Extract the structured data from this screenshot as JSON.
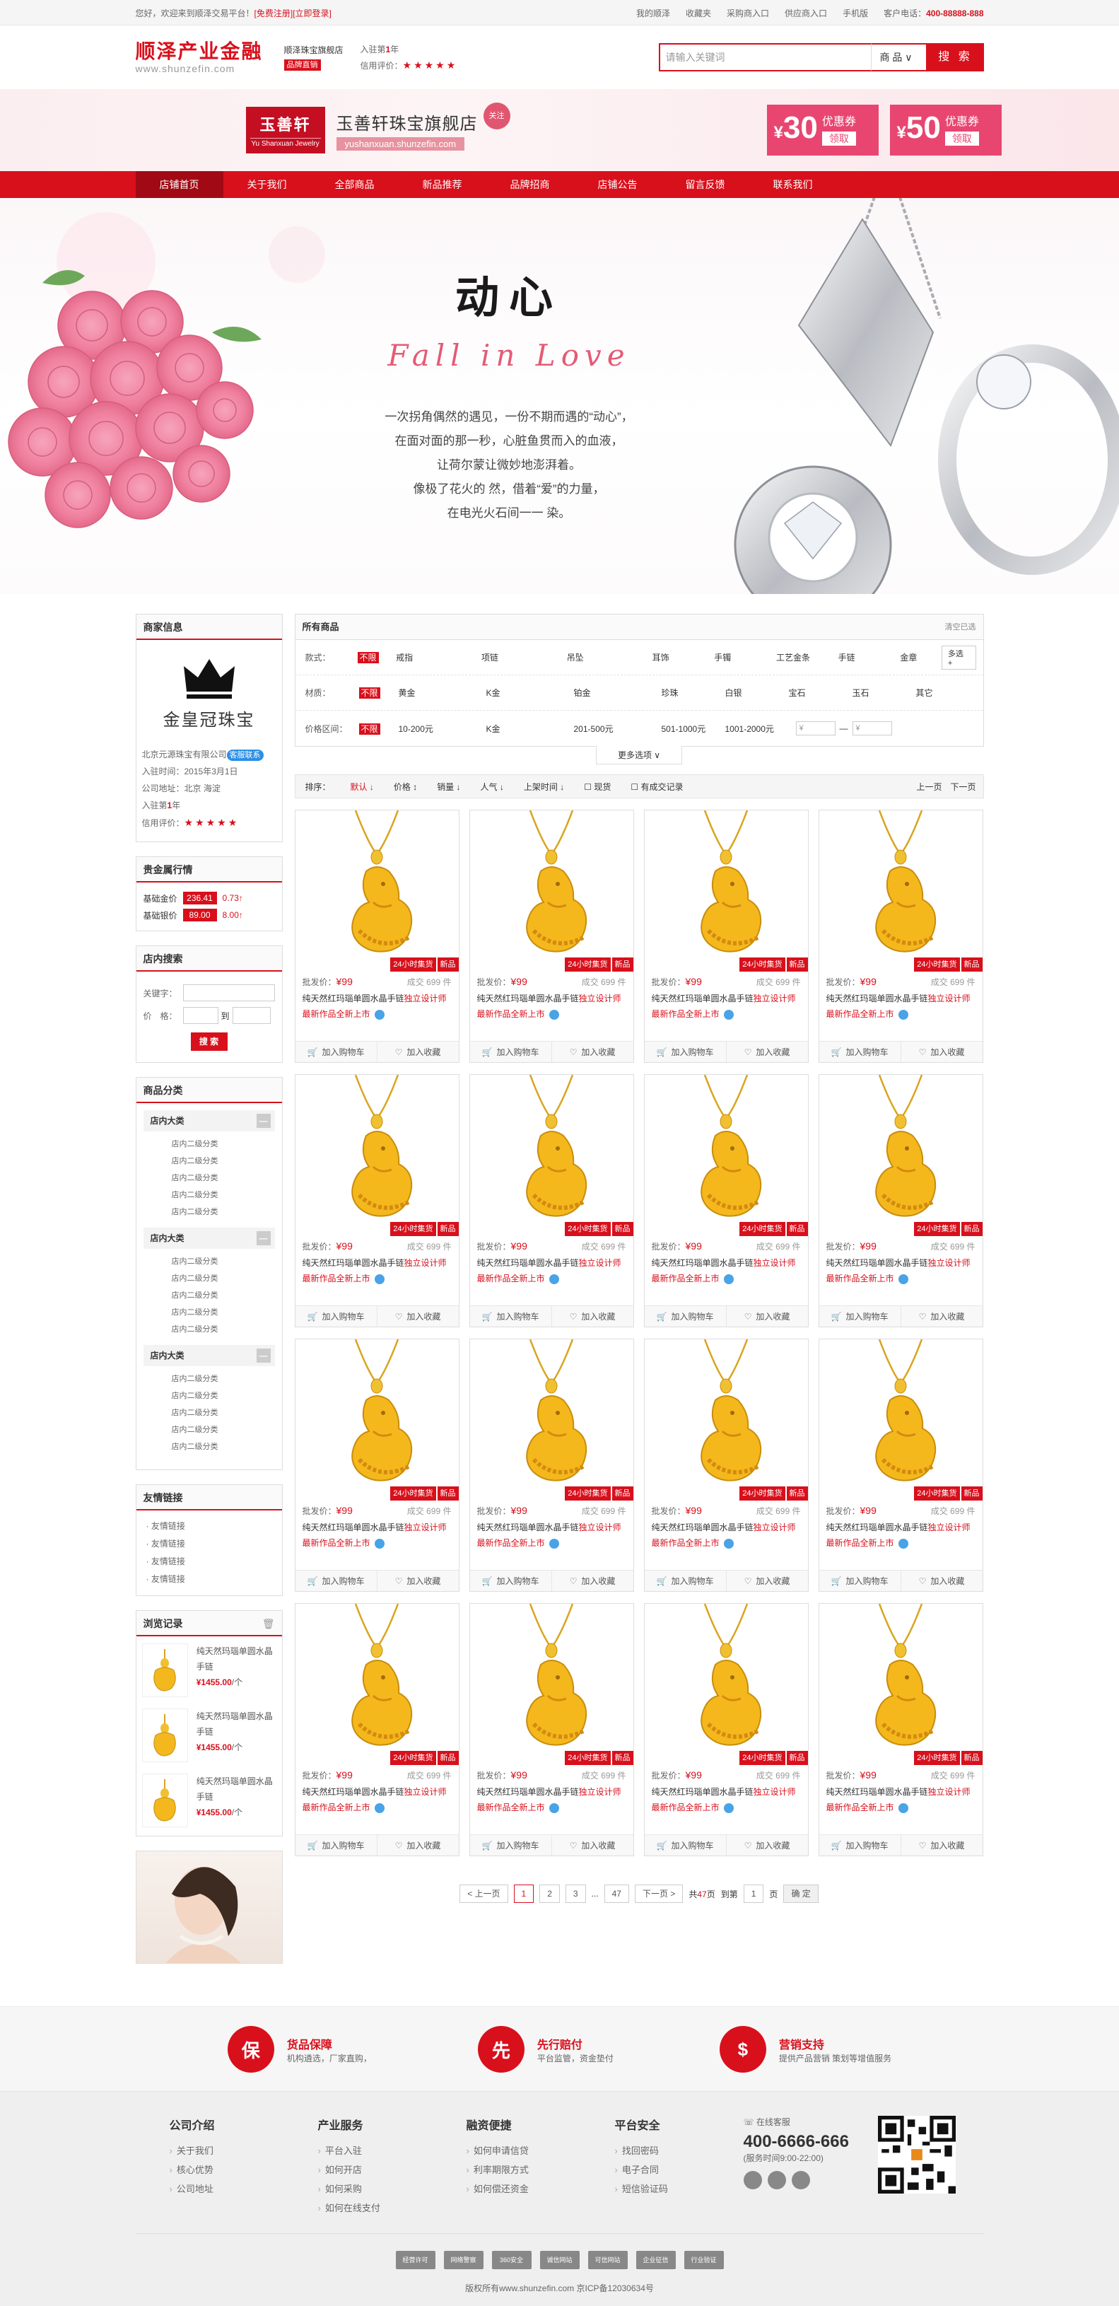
{
  "topbar": {
    "welcome": "您好，欢迎来到顺泽交易平台！",
    "register": "[免费注册]",
    "login": "[立即登录]",
    "links": [
      "我的顺泽",
      "收藏夹",
      "采购商入口",
      "供应商入口",
      "手机版"
    ],
    "tel_label": "客户电话：",
    "tel": "400-88888-888"
  },
  "header": {
    "logo_cn": "顺泽产业金融",
    "logo_en": "www.shunzefin.com",
    "shop_name": "顺泽珠宝旗舰店",
    "shop_badge": "品牌直销",
    "settled": "入驻第",
    "settled_num": "1",
    "settled_unit": "年",
    "credit": "信用评价：",
    "search_placeholder": "请输入关键词",
    "search_type": "商 品",
    "search_btn": "搜 索"
  },
  "shop": {
    "logo_text": "玉善轩",
    "logo_en": "Yu Shanxuan Jewelry",
    "name": "玉善轩珠宝旗舰店",
    "url": "yushanxuan.shunzefin.com",
    "follow": "关注",
    "coupons": [
      {
        "amount": "30",
        "label": "优惠券",
        "action": "领取"
      },
      {
        "amount": "50",
        "label": "优惠券",
        "action": "领取"
      }
    ]
  },
  "nav": [
    "店铺首页",
    "关于我们",
    "全部商品",
    "新品推荐",
    "品牌招商",
    "店铺公告",
    "留言反馈",
    "联系我们"
  ],
  "hero": {
    "title": "动心",
    "subtitle": "Fall in Love",
    "lines": [
      "一次拐角偶然的遇见，一份不期而遇的“动心”，",
      "在面对面的那一秒，心脏鱼贯而入的血液，",
      "让荷尔蒙让微妙地澎湃着。",
      "像极了花火的 然，借着“爱”的力量，",
      "在电光火石间一一 染。"
    ]
  },
  "sidebar": {
    "shopinfo": {
      "title": "商家信息",
      "name": "金皇冠珠宝",
      "company": "北京元源珠宝有限公司",
      "contact": "客服联系",
      "join_date": "入驻时间：2015年3月1日",
      "address": "公司地址：北京 海淀",
      "settled": "入驻第",
      "settled_num": "1",
      "settled_unit": "年",
      "credit": "信用评价："
    },
    "gold": {
      "title": "贵金属行情",
      "rows": [
        {
          "label": "基础金价",
          "value": "236.41",
          "change": "0.73↑"
        },
        {
          "label": "基础银价",
          "value": "89.00",
          "change": "8.00↑"
        }
      ]
    },
    "search": {
      "title": "店内搜索",
      "keyword": "关键字：",
      "price": "价　格：",
      "to": "到",
      "btn": "搜 索"
    },
    "categories": {
      "title": "商品分类",
      "groups": [
        {
          "name": "店内大类",
          "items": [
            "店内二级分类",
            "店内二级分类",
            "店内二级分类",
            "店内二级分类",
            "店内二级分类"
          ]
        },
        {
          "name": "店内大类",
          "items": [
            "店内二级分类",
            "店内二级分类",
            "店内二级分类",
            "店内二级分类",
            "店内二级分类"
          ]
        },
        {
          "name": "店内大类",
          "items": [
            "店内二级分类",
            "店内二级分类",
            "店内二级分类",
            "店内二级分类",
            "店内二级分类"
          ]
        }
      ]
    },
    "links": {
      "title": "友情链接",
      "items": [
        "友情链接",
        "友情链接",
        "友情链接",
        "友情链接"
      ]
    },
    "history": {
      "title": "浏览记录",
      "items": [
        {
          "name": "纯天然玛瑙单圆水晶手链",
          "price": "¥1455.00",
          "unit": "/个"
        },
        {
          "name": "纯天然玛瑙单圆水晶手链",
          "price": "¥1455.00",
          "unit": "/个"
        },
        {
          "name": "纯天然玛瑙单圆水晶手链",
          "price": "¥1455.00",
          "unit": "/个"
        }
      ]
    }
  },
  "filter": {
    "title": "所有商品",
    "clear": "清空已选",
    "rows": [
      {
        "label": "款式：",
        "options": [
          "不限",
          "戒指",
          "项链",
          "吊坠",
          "耳饰",
          "手镯",
          "工艺金条",
          "手链",
          "金章"
        ],
        "more": "多选 +"
      },
      {
        "label": "材质：",
        "options": [
          "不限",
          "黄金",
          "K金",
          "铂金",
          "珍珠",
          "白银",
          "宝石",
          "玉石",
          "其它"
        ]
      },
      {
        "label": "价格区间：",
        "options": [
          "不限",
          "10-200元",
          "K金",
          "201-500元",
          "501-1000元",
          "1001-2000元"
        ],
        "from": "¥",
        "to": "¥"
      }
    ],
    "more_options": "更多选项 ∨"
  },
  "sort": {
    "label": "排序：",
    "items": [
      "默认 ↓",
      "价格 ↕",
      "销量 ↓",
      "人气 ↓",
      "上架时间 ↓"
    ],
    "checks": [
      "现货",
      "有成交记录"
    ],
    "prev": "上一页",
    "next": "下一页"
  },
  "product": {
    "tag1": "24小时集货",
    "tag2": "新品",
    "price_label": "批发价：",
    "price": "¥99",
    "sold": "成交 699 件",
    "name_a": "纯天然红玛瑙单圆水晶手链",
    "name_b": "独立设计师",
    "name_c": "最新作品全新上市",
    "add_cart": "加入购物车",
    "fav": "加入收藏"
  },
  "pager": {
    "prev": "< 上一页",
    "pages": [
      "1",
      "2",
      "3",
      "...",
      "47"
    ],
    "next": "下一页 >",
    "total_a": "共",
    "total": "47",
    "total_b": "页",
    "goto": "到第",
    "goto_val": "1",
    "goto_unit": "页",
    "ok": "确 定"
  },
  "services": [
    {
      "icon": "保",
      "title": "货品保障",
      "desc": "机构遴选，厂家直购，"
    },
    {
      "icon": "先",
      "title": "先行赔付",
      "desc": "平台监管，资金垫付"
    },
    {
      "icon": "$",
      "title": "营销支持",
      "desc": "提供产品营销 策划等增值服务"
    }
  ],
  "footer": {
    "cols": [
      {
        "title": "公司介绍",
        "items": [
          "关于我们",
          "核心优势",
          "公司地址"
        ]
      },
      {
        "title": "产业服务",
        "items": [
          "平台入驻",
          "如何开店",
          "如何采购",
          "如何在线支付"
        ]
      },
      {
        "title": "融资便捷",
        "items": [
          "如何申请信贷",
          "利率期限方式",
          "如何偿还资金"
        ]
      },
      {
        "title": "平台安全",
        "items": [
          "找回密码",
          "电子合同",
          "短信验证码"
        ]
      }
    ],
    "online": "在线客服",
    "tel": "400-6666-666",
    "time": "(服务时间9:00-22:00)",
    "badges": [
      "经营许可",
      "网络警察",
      "360安全",
      "诚信网站",
      "可信网站",
      "企业征信",
      "行业验证"
    ],
    "copyright": "版权所有www.shunzefin.com 京ICP备12030634号"
  }
}
